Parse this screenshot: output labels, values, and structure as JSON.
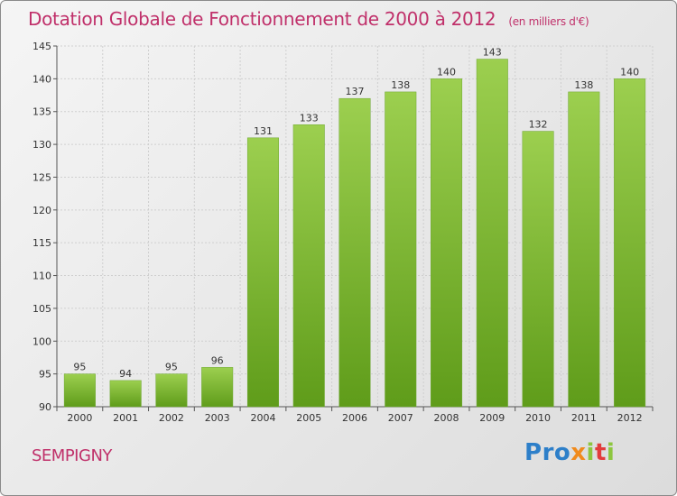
{
  "title": "Dotation Globale de Fonctionnement de 2000 à 2012",
  "subtitle": "(en milliers d'€)",
  "town": "SEMPIGNY",
  "logo": {
    "p": "P",
    "r": "r",
    "o": "o",
    "x": "x",
    "i1": "i",
    "t": "t",
    "i2": "i"
  },
  "colors": {
    "bar_light": "#9ccf4f",
    "bar_dark": "#5f9c1a",
    "title": "#c0306a",
    "grid": "#cfcfcf"
  },
  "chart_data": {
    "type": "bar",
    "categories": [
      "2000",
      "2001",
      "2002",
      "2003",
      "2004",
      "2005",
      "2006",
      "2007",
      "2008",
      "2009",
      "2010",
      "2011",
      "2012"
    ],
    "values": [
      95,
      94,
      95,
      96,
      131,
      133,
      137,
      138,
      140,
      143,
      132,
      138,
      140
    ],
    "ylim": [
      90,
      145
    ],
    "yticks": [
      90,
      95,
      100,
      105,
      110,
      115,
      120,
      125,
      130,
      135,
      140,
      145
    ],
    "grid": true,
    "data_labels": true
  }
}
